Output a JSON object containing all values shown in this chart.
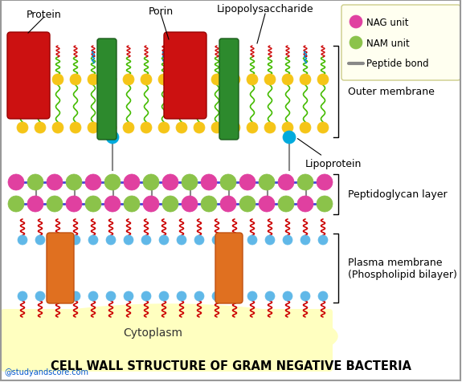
{
  "title": "CELL WALL STRUCTURE OF GRAM NEGATIVE BACTERIA",
  "bg_color": "#ffffff",
  "cytoplasm_color": "#ffffc0",
  "legend_bg": "#fffff0",
  "nag_color": "#e040a0",
  "nam_color": "#8bc34a",
  "peptide_bond_color": "#4444dd",
  "phospholipid_head_color": "#60b8e8",
  "phospholipid_tail_color": "#cc0000",
  "outer_lipid_color": "#f5c518",
  "lps_tail_green": "#44bb00",
  "lps_tail_red": "#cc0000",
  "lps_tail_blue": "#0088cc",
  "lipoprotein_color": "#00aadd",
  "red_protein_color": "#cc1111",
  "porin_color": "#2d8a2d",
  "transmembrane_protein_color": "#e07020",
  "gray_connector": "#888888",
  "watermark": "@studyandscore.com",
  "labels": {
    "protein": "Protein",
    "porin": "Porin",
    "lps": "Lipopolysaccharide",
    "outer_membrane": "Outer membrane",
    "lipoprotein": "Lipoprotein",
    "peptidoglycan": "Peptidoglycan layer",
    "plasma_membrane": "Plasma membrane\n(Phospholipid bilayer)",
    "cytoplasm": "Cytoplasm",
    "nag": "NAG unit",
    "nam": "NAM unit",
    "peptide_bond": "Peptide bond"
  },
  "figsize": [
    5.75,
    4.77
  ],
  "dpi": 100
}
